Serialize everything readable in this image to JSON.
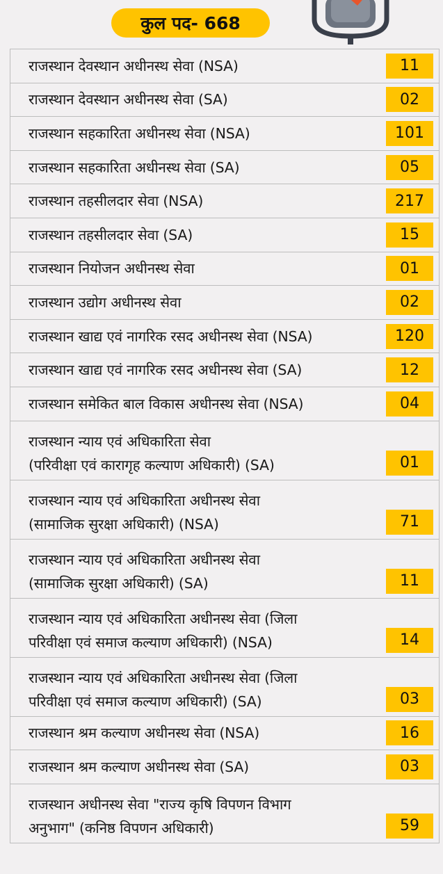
{
  "header": {
    "total_label": "कुल पद- 668"
  },
  "rows": [
    {
      "lines": [
        "राजस्थान देवस्थान अधीनस्थ सेवा (NSA)"
      ],
      "value": "11"
    },
    {
      "lines": [
        "राजस्थान देवस्थान अधीनस्थ सेवा (SA)"
      ],
      "value": "02"
    },
    {
      "lines": [
        "राजस्थान सहकारिता अधीनस्थ सेवा (NSA)"
      ],
      "value": "101"
    },
    {
      "lines": [
        "राजस्थान सहकारिता अधीनस्थ सेवा (SA)"
      ],
      "value": "05"
    },
    {
      "lines": [
        "राजस्थान तहसीलदार सेवा (NSA)"
      ],
      "value": "217"
    },
    {
      "lines": [
        "राजस्थान तहसीलदार सेवा (SA)"
      ],
      "value": "15"
    },
    {
      "lines": [
        "राजस्थान नियोजन अधीनस्थ सेवा"
      ],
      "value": "01"
    },
    {
      "lines": [
        "राजस्थान उद्योग अधीनस्थ सेवा"
      ],
      "value": "02"
    },
    {
      "lines": [
        "राजस्थान खाद्य एवं नागरिक रसद अधीनस्थ सेवा (NSA)"
      ],
      "value": "120"
    },
    {
      "lines": [
        "राजस्थान खाद्य एवं नागरिक रसद अधीनस्थ सेवा (SA)"
      ],
      "value": "12"
    },
    {
      "lines": [
        "राजस्थान समेकित बाल विकास अधीनस्थ सेवा (NSA)"
      ],
      "value": "04"
    },
    {
      "lines": [
        "राजस्थान न्याय एवं अधिकारिता सेवा",
        "(परिवीक्षा एवं कारागृह कल्याण अधिकारी) (SA)"
      ],
      "value": "01"
    },
    {
      "lines": [
        "राजस्थान न्याय एवं अधिकारिता अधीनस्थ सेवा",
        "(सामाजिक सुरक्षा अधिकारी) (NSA)"
      ],
      "value": "71"
    },
    {
      "lines": [
        "राजस्थान न्याय एवं अधिकारिता अधीनस्थ सेवा",
        "(सामाजिक सुरक्षा अधिकारी) (SA)"
      ],
      "value": "11"
    },
    {
      "lines": [
        "राजस्थान न्याय एवं अधिकारिता अधीनस्थ सेवा (जिला",
        "परिवीक्षा एवं समाज कल्याण अधिकारी) (NSA)"
      ],
      "value": "14"
    },
    {
      "lines": [
        "राजस्थान न्याय एवं अधिकारिता अधीनस्थ सेवा (जिला",
        "परिवीक्षा एवं समाज कल्याण अधिकारी) (SA)"
      ],
      "value": "03"
    },
    {
      "lines": [
        "राजस्थान श्रम कल्याण अधीनस्थ सेवा (NSA)"
      ],
      "value": "16"
    },
    {
      "lines": [
        "राजस्थान श्रम कल्याण अधीनस्थ सेवा (SA)"
      ],
      "value": "03"
    },
    {
      "lines": [
        "राजस्थान अधीनस्थ सेवा \"राज्य कृषि विपणन विभाग",
        "अनुभाग\" (कनिष्ठ विपणन अधिकारी)"
      ],
      "value": "59"
    }
  ],
  "colors": {
    "accent": "#ffc300",
    "border": "#bdbdbd",
    "background": "#f2f0f1"
  }
}
